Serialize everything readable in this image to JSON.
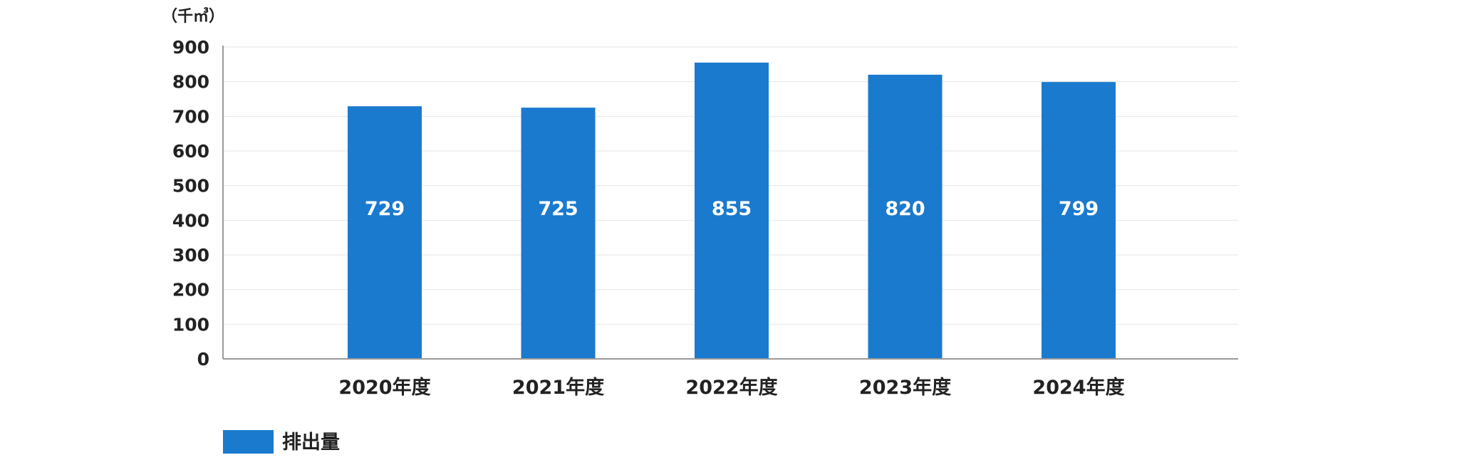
{
  "chart_data": {
    "type": "bar",
    "unit_label": "（千㎥）",
    "categories": [
      "2020年度",
      "2021年度",
      "2022年度",
      "2023年度",
      "2024年度"
    ],
    "series": [
      {
        "name": "排出量",
        "values": [
          729,
          725,
          855,
          820,
          799
        ],
        "color": "#1a7acd"
      }
    ],
    "ylim": [
      0,
      900
    ],
    "yticks": [
      0,
      100,
      200,
      300,
      400,
      500,
      600,
      700,
      800,
      900
    ],
    "grid": true,
    "data_labels": true,
    "legend_position": "bottom-left"
  }
}
